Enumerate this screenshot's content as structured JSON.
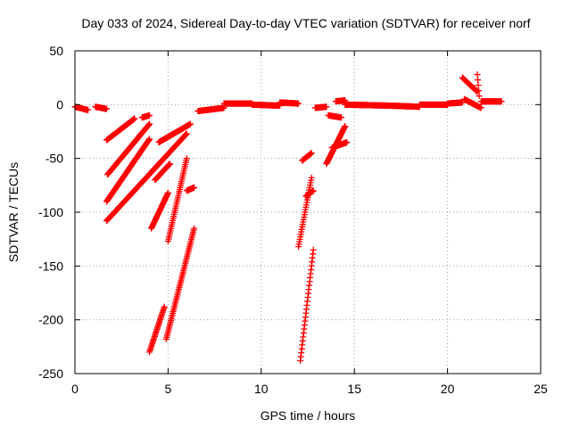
{
  "chart_data": {
    "type": "scatter",
    "title": "Day 033 of 2024, Sidereal Day-to-day VTEC variation (SDTVAR) for receiver norf",
    "xlabel": "GPS time / hours",
    "ylabel": "SDTVAR / TECUs",
    "xlim": [
      0,
      25
    ],
    "ylim": [
      -250,
      50
    ],
    "xticks": [
      0,
      5,
      10,
      15,
      20,
      25
    ],
    "yticks": [
      50,
      0,
      -50,
      -100,
      -150,
      -200,
      -250
    ],
    "xtick_labels": [
      "0",
      "5",
      "10",
      "15",
      "20",
      "25"
    ],
    "ytick_labels": [
      "50",
      "0",
      "-50",
      "-100",
      "-150",
      "-200",
      "-250"
    ],
    "grid": true,
    "marker": "plus",
    "series_color": "#ff0000",
    "tracks": [
      {
        "x0": 0.0,
        "x1": 0.7,
        "y0": -2,
        "y1": -5
      },
      {
        "x0": 1.1,
        "x1": 1.7,
        "y0": -2,
        "y1": -4
      },
      {
        "x0": 1.7,
        "x1": 3.2,
        "y0": -33,
        "y1": -13
      },
      {
        "x0": 1.75,
        "x1": 4.0,
        "y0": -65,
        "y1": -18
      },
      {
        "x0": 1.7,
        "x1": 4.0,
        "y0": -90,
        "y1": -32
      },
      {
        "x0": 1.7,
        "x1": 6.0,
        "y0": -108,
        "y1": -27
      },
      {
        "x0": 3.6,
        "x1": 4.0,
        "y0": -12,
        "y1": -10
      },
      {
        "x0": 4.5,
        "x1": 6.2,
        "y0": -35,
        "y1": -18
      },
      {
        "x0": 4.3,
        "x1": 5.1,
        "y0": -70,
        "y1": -55
      },
      {
        "x0": 4.1,
        "x1": 5.0,
        "y0": -115,
        "y1": -82
      },
      {
        "x0": 5.0,
        "x1": 6.0,
        "y0": -127,
        "y1": -50
      },
      {
        "x0": 4.0,
        "x1": 4.8,
        "y0": -230,
        "y1": -188
      },
      {
        "x0": 4.9,
        "x1": 6.4,
        "y0": -218,
        "y1": -115
      },
      {
        "x0": 6.0,
        "x1": 6.4,
        "y0": -80,
        "y1": -77
      },
      {
        "x0": 6.6,
        "x1": 8.0,
        "y0": -6,
        "y1": -3
      },
      {
        "x0": 8.0,
        "x1": 9.5,
        "y0": 1,
        "y1": 1
      },
      {
        "x0": 9.5,
        "x1": 11.0,
        "y0": 0,
        "y1": -1
      },
      {
        "x0": 11.0,
        "x1": 12.0,
        "y0": 2,
        "y1": 1
      },
      {
        "x0": 12.2,
        "x1": 12.7,
        "y0": -52,
        "y1": -45
      },
      {
        "x0": 12.0,
        "x1": 12.7,
        "y0": -132,
        "y1": -68
      },
      {
        "x0": 12.1,
        "x1": 12.8,
        "y0": -238,
        "y1": -135
      },
      {
        "x0": 12.4,
        "x1": 12.8,
        "y0": -85,
        "y1": -80
      },
      {
        "x0": 12.9,
        "x1": 13.5,
        "y0": -3,
        "y1": -2
      },
      {
        "x0": 13.5,
        "x1": 14.5,
        "y0": -55,
        "y1": -20
      },
      {
        "x0": 13.8,
        "x1": 14.6,
        "y0": -40,
        "y1": -35
      },
      {
        "x0": 13.6,
        "x1": 14.3,
        "y0": -10,
        "y1": -12
      },
      {
        "x0": 14.0,
        "x1": 14.5,
        "y0": 3,
        "y1": 4
      },
      {
        "x0": 14.5,
        "x1": 17.0,
        "y0": 0,
        "y1": -1
      },
      {
        "x0": 17.0,
        "x1": 18.5,
        "y0": -1,
        "y1": -2
      },
      {
        "x0": 18.5,
        "x1": 20.0,
        "y0": 0,
        "y1": 0
      },
      {
        "x0": 20.0,
        "x1": 20.8,
        "y0": 1,
        "y1": 2
      },
      {
        "x0": 20.8,
        "x1": 21.6,
        "y0": 25,
        "y1": 12
      },
      {
        "x0": 21.6,
        "x1": 21.7,
        "y0": 28,
        "y1": 8
      },
      {
        "x0": 20.9,
        "x1": 21.8,
        "y0": 5,
        "y1": -3
      },
      {
        "x0": 21.8,
        "x1": 22.9,
        "y0": 3,
        "y1": 3
      }
    ]
  }
}
